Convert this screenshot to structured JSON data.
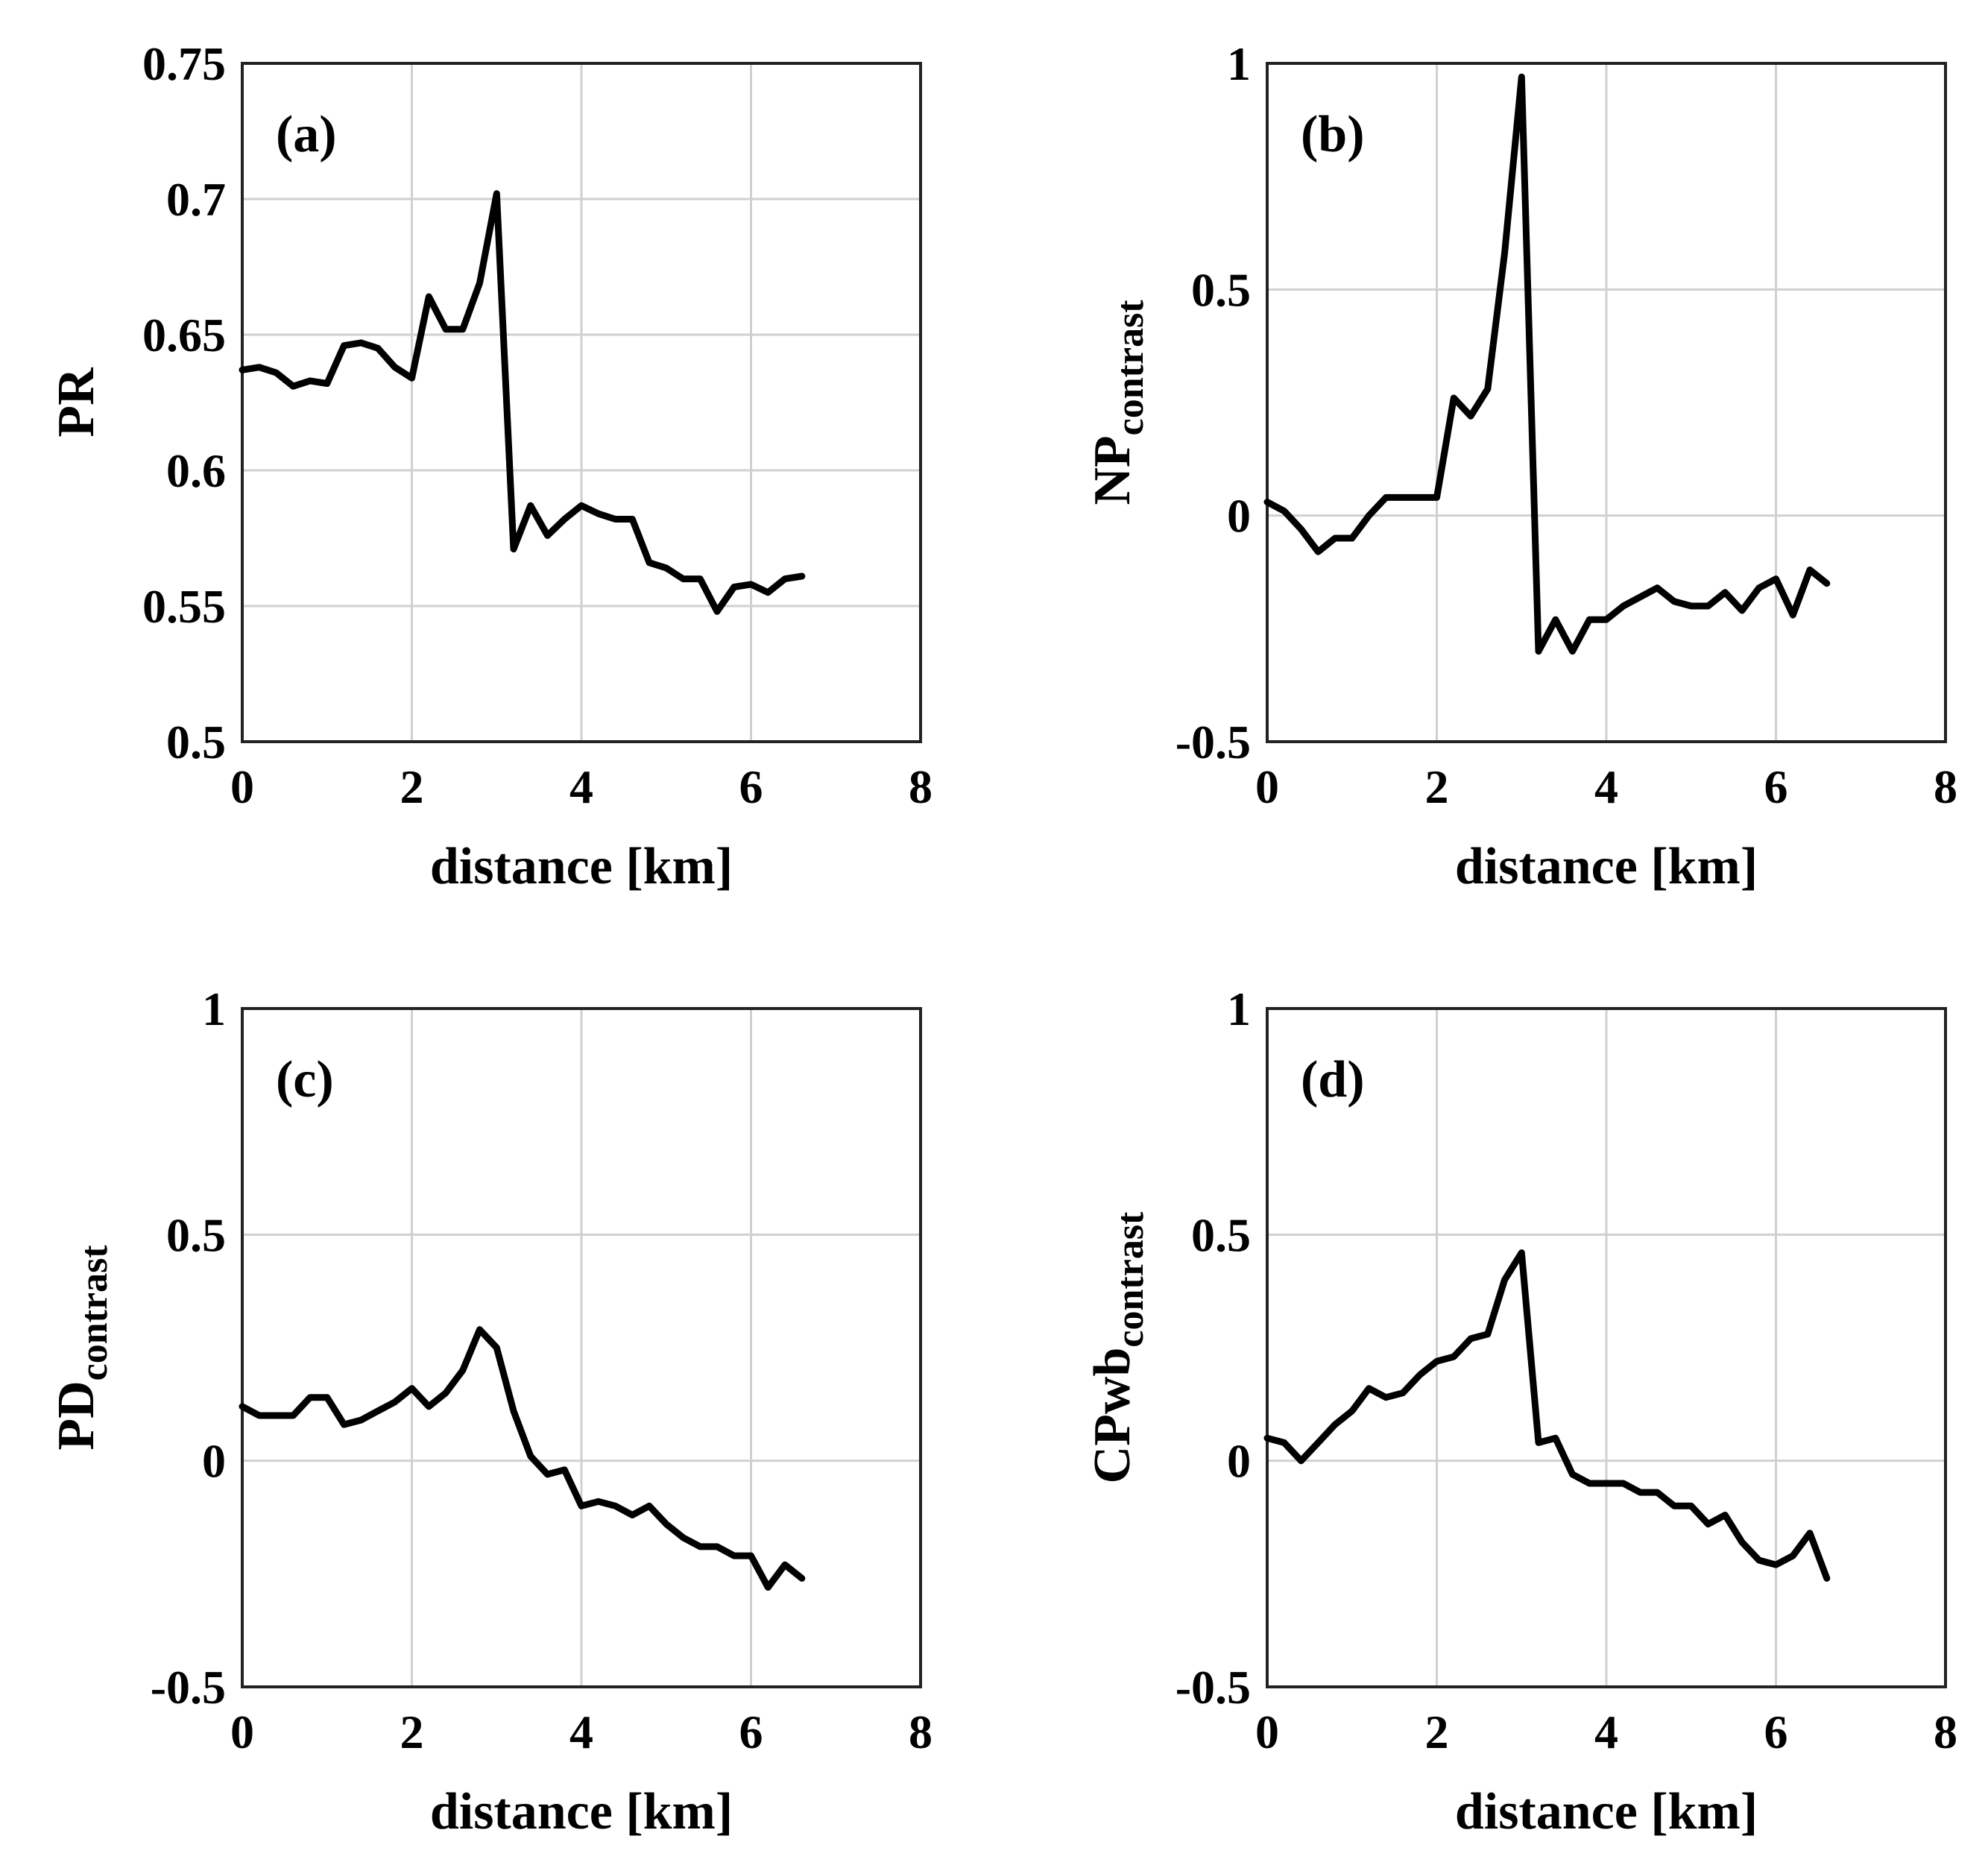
{
  "chart_data": [
    {
      "id": "a",
      "type": "line",
      "panel_label": "(a)",
      "ylabel": "PR",
      "ylabel_sub": "",
      "xlabel": "distance [km]",
      "xlim": [
        0,
        8
      ],
      "ylim": [
        0.5,
        0.75
      ],
      "xticks": [
        "0",
        "2",
        "4",
        "6",
        "8"
      ],
      "xtick_values": [
        0,
        2,
        4,
        6,
        8
      ],
      "yticks": [
        "0.5",
        "0.55",
        "0.6",
        "0.65",
        "0.7",
        "0.75"
      ],
      "ytick_values": [
        0.5,
        0.55,
        0.6,
        0.65,
        0.7,
        0.75
      ],
      "grid": true,
      "x": [
        0,
        0.2,
        0.4,
        0.6,
        0.8,
        1.0,
        1.2,
        1.4,
        1.6,
        1.8,
        2.0,
        2.2,
        2.4,
        2.6,
        2.8,
        3.0,
        3.2,
        3.4,
        3.6,
        3.8,
        4.0,
        4.2,
        4.4,
        4.6,
        4.8,
        5.0,
        5.2,
        5.4,
        5.6,
        5.8,
        6.0,
        6.2,
        6.4,
        6.6
      ],
      "y": [
        0.637,
        0.638,
        0.636,
        0.631,
        0.633,
        0.632,
        0.646,
        0.647,
        0.645,
        0.638,
        0.634,
        0.664,
        0.652,
        0.652,
        0.669,
        0.702,
        0.571,
        0.587,
        0.576,
        0.582,
        0.587,
        0.584,
        0.582,
        0.582,
        0.566,
        0.564,
        0.56,
        0.56,
        0.548,
        0.557,
        0.558,
        0.555,
        0.56,
        0.561
      ]
    },
    {
      "id": "b",
      "type": "line",
      "panel_label": "(b)",
      "ylabel": "NP",
      "ylabel_sub": "contrast",
      "xlabel": "distance [km]",
      "xlim": [
        0,
        8
      ],
      "ylim": [
        -0.5,
        1
      ],
      "xticks": [
        "0",
        "2",
        "4",
        "6",
        "8"
      ],
      "xtick_values": [
        0,
        2,
        4,
        6,
        8
      ],
      "yticks": [
        "-0.5",
        "0",
        "0.5",
        "1"
      ],
      "ytick_values": [
        -0.5,
        0,
        0.5,
        1
      ],
      "grid": true,
      "x": [
        0,
        0.2,
        0.4,
        0.6,
        0.8,
        1.0,
        1.2,
        1.4,
        1.6,
        1.8,
        2.0,
        2.2,
        2.4,
        2.6,
        2.8,
        3.0,
        3.2,
        3.4,
        3.6,
        3.8,
        4.0,
        4.2,
        4.4,
        4.6,
        4.8,
        5.0,
        5.2,
        5.4,
        5.6,
        5.8,
        6.0,
        6.2,
        6.4,
        6.6
      ],
      "y": [
        0.03,
        0.01,
        -0.03,
        -0.08,
        -0.05,
        -0.05,
        0.0,
        0.04,
        0.04,
        0.04,
        0.04,
        0.26,
        0.22,
        0.28,
        0.58,
        0.97,
        -0.3,
        -0.23,
        -0.3,
        -0.23,
        -0.23,
        -0.2,
        -0.18,
        -0.16,
        -0.19,
        -0.2,
        -0.2,
        -0.17,
        -0.21,
        -0.16,
        -0.14,
        -0.22,
        -0.12,
        -0.15
      ]
    },
    {
      "id": "c",
      "type": "line",
      "panel_label": "(c)",
      "ylabel": "PD",
      "ylabel_sub": "contrast",
      "xlabel": "distance [km]",
      "xlim": [
        0,
        8
      ],
      "ylim": [
        -0.5,
        1
      ],
      "xticks": [
        "0",
        "2",
        "4",
        "6",
        "8"
      ],
      "xtick_values": [
        0,
        2,
        4,
        6,
        8
      ],
      "yticks": [
        "-0.5",
        "0",
        "0.5",
        "1"
      ],
      "ytick_values": [
        -0.5,
        0,
        0.5,
        1
      ],
      "grid": true,
      "x": [
        0,
        0.2,
        0.4,
        0.6,
        0.8,
        1.0,
        1.2,
        1.4,
        1.6,
        1.8,
        2.0,
        2.2,
        2.4,
        2.6,
        2.8,
        3.0,
        3.2,
        3.4,
        3.6,
        3.8,
        4.0,
        4.2,
        4.4,
        4.6,
        4.8,
        5.0,
        5.2,
        5.4,
        5.6,
        5.8,
        6.0,
        6.2,
        6.4,
        6.6
      ],
      "y": [
        0.12,
        0.1,
        0.1,
        0.1,
        0.14,
        0.14,
        0.08,
        0.09,
        0.11,
        0.13,
        0.16,
        0.12,
        0.15,
        0.2,
        0.29,
        0.25,
        0.11,
        0.01,
        -0.03,
        -0.02,
        -0.1,
        -0.09,
        -0.1,
        -0.12,
        -0.1,
        -0.14,
        -0.17,
        -0.19,
        -0.19,
        -0.21,
        -0.21,
        -0.28,
        -0.23,
        -0.26
      ]
    },
    {
      "id": "d",
      "type": "line",
      "panel_label": "(d)",
      "ylabel": "CPwb",
      "ylabel_sub": "contrast",
      "xlabel": "distance [km]",
      "xlim": [
        0,
        8
      ],
      "ylim": [
        -0.5,
        1
      ],
      "xticks": [
        "0",
        "2",
        "4",
        "6",
        "8"
      ],
      "xtick_values": [
        0,
        2,
        4,
        6,
        8
      ],
      "yticks": [
        "-0.5",
        "0",
        "0.5",
        "1"
      ],
      "ytick_values": [
        -0.5,
        0,
        0.5,
        1
      ],
      "grid": true,
      "x": [
        0,
        0.2,
        0.4,
        0.6,
        0.8,
        1.0,
        1.2,
        1.4,
        1.6,
        1.8,
        2.0,
        2.2,
        2.4,
        2.6,
        2.8,
        3.0,
        3.2,
        3.4,
        3.6,
        3.8,
        4.0,
        4.2,
        4.4,
        4.6,
        4.8,
        5.0,
        5.2,
        5.4,
        5.6,
        5.8,
        6.0,
        6.2,
        6.4,
        6.6
      ],
      "y": [
        0.05,
        0.04,
        0.0,
        0.04,
        0.08,
        0.11,
        0.16,
        0.14,
        0.15,
        0.19,
        0.22,
        0.23,
        0.27,
        0.28,
        0.4,
        0.46,
        0.04,
        0.05,
        -0.03,
        -0.05,
        -0.05,
        -0.05,
        -0.07,
        -0.07,
        -0.1,
        -0.1,
        -0.14,
        -0.12,
        -0.18,
        -0.22,
        -0.23,
        -0.21,
        -0.16,
        -0.26
      ]
    }
  ]
}
